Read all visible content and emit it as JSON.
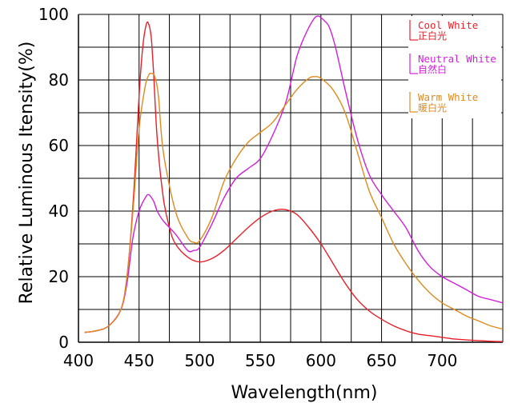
{
  "chart_data": {
    "type": "line",
    "title": "",
    "xlabel": "Wavelength(nm)",
    "ylabel": "Relative Luminous Itensity(%)",
    "xlim": [
      400,
      750
    ],
    "ylim": [
      0,
      100
    ],
    "x_tick_labels": [
      "400",
      "450",
      "500",
      "550",
      "600",
      "650",
      "700"
    ],
    "x_tick_values": [
      400,
      450,
      500,
      550,
      600,
      650,
      700
    ],
    "y_tick_labels": [
      "0",
      "20",
      "40",
      "60",
      "80",
      "100"
    ],
    "y_tick_values": [
      0,
      20,
      40,
      60,
      80,
      100
    ],
    "grid": true,
    "legend_position": "right",
    "series": [
      {
        "name": "Cool White",
        "name_zh": "正白光",
        "color": "#e8202a",
        "x": [
          405,
          415,
          425,
          435,
          440,
          445,
          450,
          453,
          456,
          458,
          460,
          462,
          465,
          470,
          475,
          480,
          490,
          500,
          510,
          520,
          530,
          540,
          550,
          560,
          570,
          580,
          590,
          600,
          610,
          620,
          630,
          640,
          650,
          660,
          670,
          680,
          690,
          700,
          710,
          720,
          730,
          740,
          750
        ],
        "y": [
          3,
          3.5,
          5,
          10,
          20,
          42,
          75,
          90,
          97,
          97,
          93,
          82,
          62,
          44,
          35,
          30,
          26,
          24.5,
          25.5,
          28,
          31.5,
          35,
          38,
          40,
          40.5,
          39,
          35,
          30,
          24,
          18,
          13,
          9.5,
          7,
          5,
          3.5,
          2.5,
          2,
          1.5,
          1,
          0.7,
          0.5,
          0.3,
          0.2
        ]
      },
      {
        "name": "Neutral White",
        "name_zh": "自然白",
        "color": "#d21edb",
        "x": [
          405,
          415,
          425,
          435,
          440,
          445,
          450,
          455,
          458,
          462,
          465,
          470,
          480,
          490,
          495,
          500,
          510,
          520,
          530,
          540,
          550,
          560,
          570,
          575,
          580,
          585,
          590,
          595,
          598,
          600,
          603,
          607,
          612,
          620,
          630,
          640,
          650,
          660,
          670,
          680,
          690,
          700,
          710,
          720,
          730,
          740,
          750
        ],
        "y": [
          3,
          3.5,
          5,
          10,
          18,
          32,
          40,
          44,
          45,
          43,
          40,
          37,
          33,
          28,
          28,
          29,
          36,
          44,
          50,
          53,
          56,
          63,
          72,
          79,
          87,
          92,
          96,
          99,
          99.5,
          99,
          98,
          96,
          90,
          77,
          62,
          51,
          45,
          40,
          35,
          28,
          23,
          20,
          18,
          16,
          14,
          13,
          12
        ]
      },
      {
        "name": "Warm White",
        "name_zh": "暖白光",
        "color": "#e08a1e",
        "x": [
          405,
          415,
          425,
          435,
          440,
          445,
          450,
          455,
          458,
          460,
          463,
          466,
          470,
          480,
          490,
          495,
          500,
          510,
          520,
          530,
          540,
          550,
          560,
          570,
          580,
          590,
          595,
          600,
          610,
          620,
          630,
          640,
          650,
          660,
          670,
          680,
          690,
          700,
          710,
          720,
          730,
          740,
          750
        ],
        "y": [
          3,
          3.5,
          5,
          10,
          20,
          40,
          65,
          78,
          81.5,
          82,
          81,
          75,
          58,
          40,
          32,
          30.5,
          31,
          38,
          49,
          56,
          61,
          64,
          67,
          72,
          77,
          80.5,
          81,
          80.5,
          77,
          70,
          58,
          46,
          38,
          30,
          24,
          19,
          15,
          12,
          10,
          8,
          6.5,
          5,
          4
        ]
      }
    ]
  }
}
